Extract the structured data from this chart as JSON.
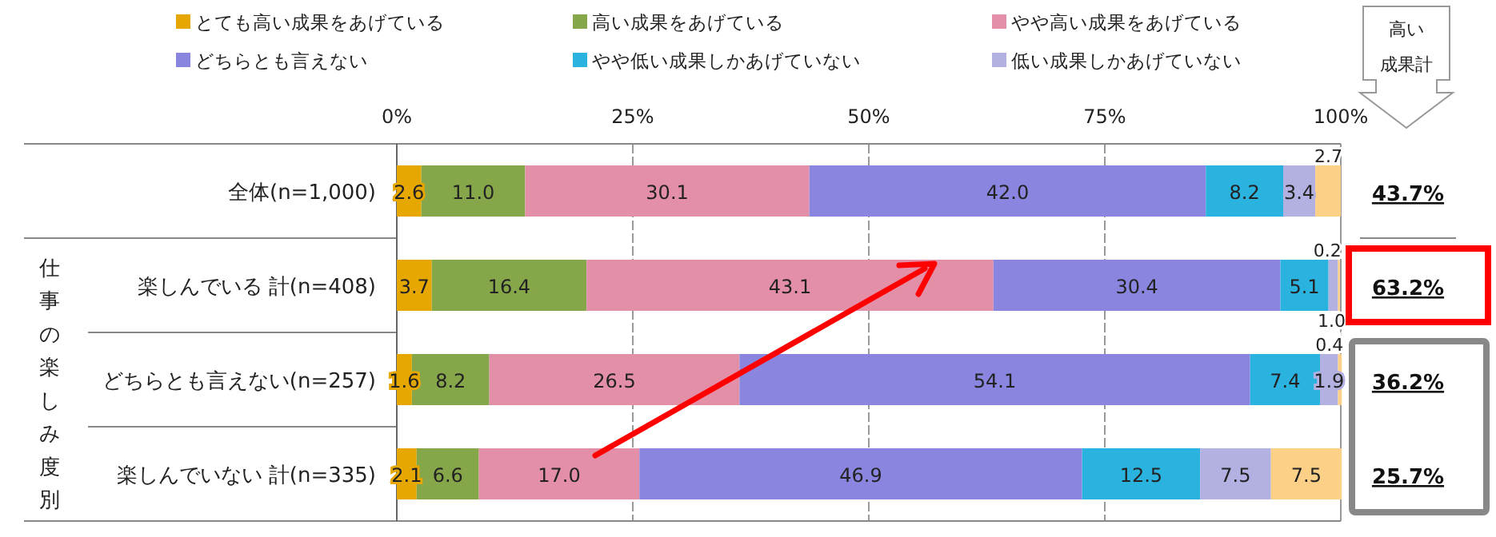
{
  "chart_data": {
    "type": "bar",
    "orientation": "horizontal",
    "stacked": true,
    "grid": "x",
    "legend": "top",
    "categories": [
      "全体(n=1,000)",
      "楽しんでいる 計(n=408)",
      "どちらとも言えない(n=257)",
      "楽しんでいない 計(n=335)"
    ],
    "xlim": [
      0,
      100
    ],
    "xticks": [
      {
        "value": 0,
        "label": "0%"
      },
      {
        "value": 25,
        "label": "25%"
      },
      {
        "value": 50,
        "label": "50%"
      },
      {
        "value": 75,
        "label": "75%"
      },
      {
        "value": 100,
        "label": "100%"
      }
    ],
    "series": [
      {
        "name": "とても高い成果をあげている",
        "color": "#e6a800",
        "values": [
          2.6,
          3.7,
          1.6,
          2.1
        ],
        "value_labels": [
          "2.6",
          "3.7",
          "1.6",
          "2.1"
        ]
      },
      {
        "name": "高い成果をあげている",
        "color": "#86a64a",
        "values": [
          11.0,
          16.4,
          8.2,
          6.6
        ],
        "value_labels": [
          "11.0",
          "16.4",
          "8.2",
          "6.6"
        ]
      },
      {
        "name": "やや高い成果をあげている",
        "color": "#e48fa8",
        "values": [
          30.1,
          43.1,
          26.5,
          17.0
        ],
        "value_labels": [
          "30.1",
          "43.1",
          "26.5",
          "17.0"
        ]
      },
      {
        "name": "どちらとも言えない",
        "color": "#8a86e0",
        "values": [
          42.0,
          30.4,
          54.1,
          46.9
        ],
        "value_labels": [
          "42.0",
          "30.4",
          "54.1",
          "46.9"
        ]
      },
      {
        "name": "やや低い成果しかあげていない",
        "color": "#2bb3e0",
        "values": [
          8.2,
          5.1,
          7.4,
          12.5
        ],
        "value_labels": [
          "8.2",
          "5.1",
          "7.4",
          "12.5"
        ]
      },
      {
        "name": "低い成果しかあげていない",
        "color": "#b3b0e2",
        "values": [
          3.4,
          1.0,
          1.9,
          7.5
        ],
        "value_labels": [
          "3.4",
          "1.0",
          "1.9",
          "7.5"
        ]
      },
      {
        "color": "#fdd088",
        "values": [
          2.7,
          0.2,
          0.4,
          7.5
        ],
        "value_labels": [
          "2.7",
          "0.2",
          "0.4",
          "7.5"
        ]
      }
    ],
    "annotations": [
      "仕事の楽しみ度別",
      "高い成果計",
      "43.7%",
      "63.2%",
      "36.2%",
      "25.7%"
    ]
  }
}
